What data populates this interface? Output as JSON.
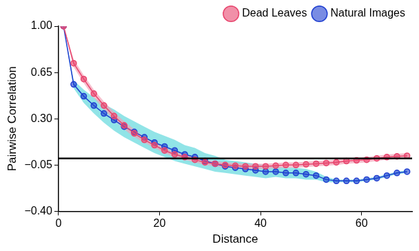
{
  "chart_data": {
    "type": "line",
    "x_label": "Distance",
    "y_label": "Pairwise Correlation",
    "x": [
      1,
      3,
      5,
      7,
      9,
      11,
      13,
      15,
      17,
      19,
      21,
      23,
      25,
      27,
      29,
      31,
      33,
      35,
      37,
      39,
      41,
      43,
      45,
      47,
      49,
      51,
      53,
      55,
      57,
      59,
      61,
      63,
      65,
      67,
      69
    ],
    "series": [
      {
        "name": "Dead Leaves",
        "color": "#e8466e",
        "marker": "circle",
        "band_color": "#f4a3b8",
        "values": [
          1.0,
          0.72,
          0.6,
          0.49,
          0.4,
          0.32,
          0.25,
          0.19,
          0.14,
          0.1,
          0.06,
          0.03,
          0.01,
          -0.01,
          -0.03,
          -0.04,
          -0.05,
          -0.055,
          -0.06,
          -0.06,
          -0.06,
          -0.055,
          -0.05,
          -0.05,
          -0.045,
          -0.04,
          -0.035,
          -0.03,
          -0.02,
          -0.015,
          -0.01,
          0.0,
          0.01,
          0.015,
          0.02
        ],
        "error": [
          0.0,
          0.03,
          0.03,
          0.03,
          0.03,
          0.03,
          0.03,
          0.03,
          0.02,
          0.02,
          0.02,
          0.02,
          0.02,
          0.02,
          0.02,
          0.02,
          0.02,
          0.02,
          0.02,
          0.02,
          0.02,
          0.02,
          0.02,
          0.02,
          0.02,
          0.02,
          0.02,
          0.02,
          0.02,
          0.02,
          0.02,
          0.02,
          0.02,
          0.02,
          0.02
        ]
      },
      {
        "name": "Natural Images",
        "color": "#1f3fd0",
        "marker": "circle",
        "band_color": "#5fd8dc",
        "values": [
          1.0,
          0.56,
          0.47,
          0.4,
          0.34,
          0.29,
          0.24,
          0.2,
          0.16,
          0.12,
          0.09,
          0.06,
          0.03,
          0.01,
          -0.02,
          -0.04,
          -0.06,
          -0.07,
          -0.08,
          -0.09,
          -0.1,
          -0.1,
          -0.11,
          -0.11,
          -0.12,
          -0.13,
          -0.16,
          -0.17,
          -0.17,
          -0.17,
          -0.16,
          -0.15,
          -0.13,
          -0.11,
          -0.1
        ],
        "error": [
          0.0,
          0.03,
          0.05,
          0.06,
          0.07,
          0.08,
          0.08,
          0.08,
          0.08,
          0.08,
          0.08,
          0.08,
          0.07,
          0.07,
          0.06,
          0.06,
          0.05,
          0.05,
          0.05,
          0.05,
          0.05,
          0.04,
          0.04,
          0.04,
          0.04,
          0.03,
          0.02,
          0.01,
          0.01,
          0.01,
          0.01,
          0.01,
          0.01,
          0.01,
          0.01
        ]
      }
    ],
    "reference_line": 0,
    "xlim": [
      0,
      70
    ],
    "xticks": [
      0,
      20,
      40,
      60
    ],
    "ylim": [
      -0.4,
      1.0
    ],
    "yticks": [
      {
        "value": -0.4,
        "label": "−0.40"
      },
      {
        "value": -0.05,
        "label": "−0.05"
      },
      {
        "value": 0.3,
        "label": "0.30"
      },
      {
        "value": 0.65,
        "label": "0.65"
      },
      {
        "value": 1.0,
        "label": "1.00"
      }
    ],
    "legend": "upper right",
    "grid": false
  }
}
